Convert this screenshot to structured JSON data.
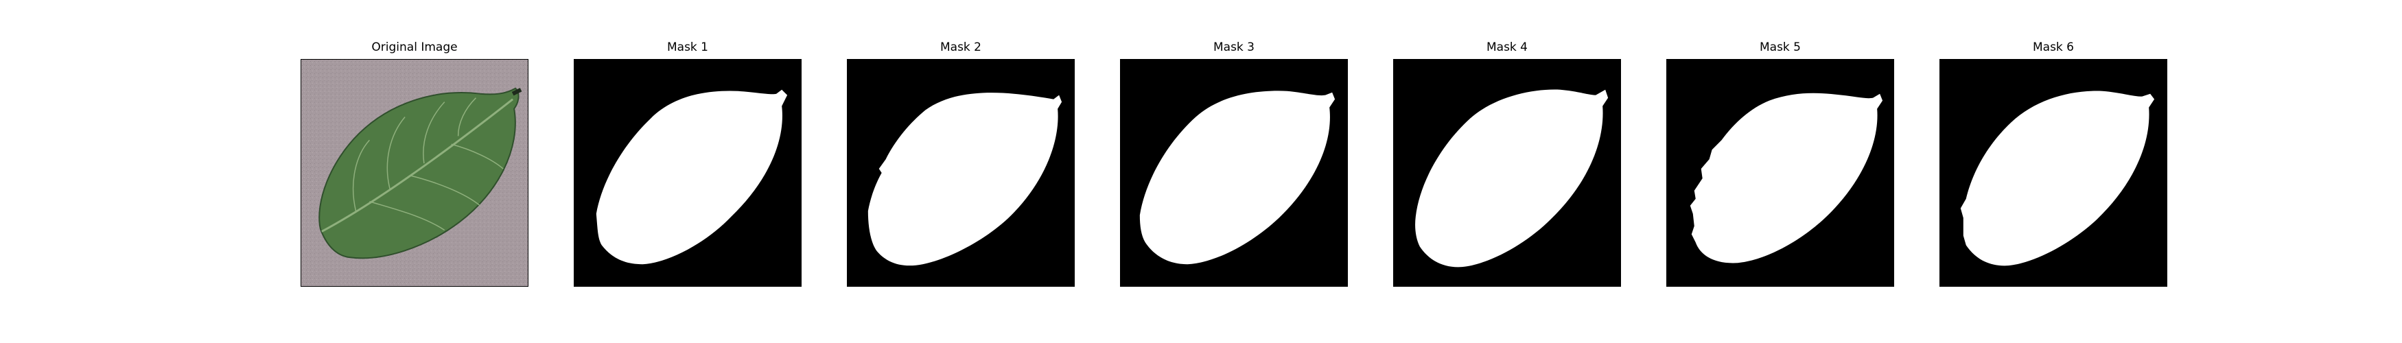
{
  "figure": {
    "panels": [
      {
        "title": "Original Image",
        "kind": "photo",
        "subject": "leaf"
      },
      {
        "title": "Mask 1",
        "kind": "mask"
      },
      {
        "title": "Mask 2",
        "kind": "mask"
      },
      {
        "title": "Mask 3",
        "kind": "mask"
      },
      {
        "title": "Mask 4",
        "kind": "mask"
      },
      {
        "title": "Mask 5",
        "kind": "mask"
      },
      {
        "title": "Mask 6",
        "kind": "mask"
      }
    ]
  },
  "colors": {
    "mask_background": "#000000",
    "mask_foreground": "#ffffff",
    "photo_background": "#a69a9f",
    "leaf_fill": "#4f7a43",
    "leaf_vein": "#8fb07d",
    "leaf_edge": "#2f4f2c"
  }
}
